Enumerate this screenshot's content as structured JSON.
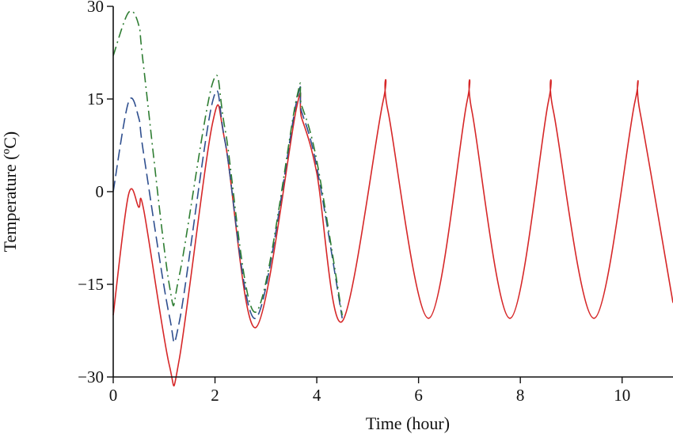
{
  "chart_data": {
    "type": "line",
    "title": "",
    "xlabel": "Time (hour)",
    "ylabel": "Temperature (ºC)",
    "xlim": [
      0,
      11
    ],
    "ylim": [
      -30,
      30
    ],
    "x_ticks": [
      0,
      2,
      4,
      6,
      8,
      10
    ],
    "y_ticks": [
      -30,
      -15,
      0,
      15,
      30
    ],
    "x_tick_labels": [
      "0",
      "2",
      "4",
      "6",
      "8",
      "10"
    ],
    "y_tick_labels": [
      "−30",
      "−15",
      "0",
      "15",
      "30"
    ],
    "grid": false,
    "legend": "none",
    "series": [
      {
        "color": "#d62728",
        "dash": "solid",
        "x": [
          0,
          0.3,
          0.5,
          0.6,
          1.1,
          1.3,
          1.95,
          2.2,
          2.8,
          3.6,
          3.7,
          4.0,
          4.5,
          5.3,
          5.4,
          6.2,
          6.95,
          7.05,
          7.8,
          8.55,
          8.65,
          9.45,
          10.25,
          10.35,
          11
        ],
        "y": [
          -20,
          -0.5,
          -2.5,
          -3,
          -28,
          -27,
          11,
          8,
          -22,
          13.5,
          12,
          3,
          -21,
          14.5,
          13,
          -20.5,
          14.5,
          13,
          -20.5,
          14.5,
          13,
          -20.5,
          14.5,
          13,
          -18
        ]
      },
      {
        "color": "#2f4f8f",
        "dash": "long-dash",
        "x": [
          0,
          0.3,
          0.5,
          0.6,
          1.1,
          1.3,
          1.95,
          2.2,
          2.8,
          3.6,
          3.7,
          4.0,
          4.5
        ],
        "y": [
          0,
          14.5,
          12,
          6,
          -20,
          -21,
          14.5,
          8,
          -20.5,
          14.5,
          13,
          4,
          -20.5
        ]
      },
      {
        "color": "#2e7d32",
        "dash": "dash-dot",
        "x": [
          0,
          0.3,
          0.5,
          0.6,
          1.1,
          1.3,
          1.95,
          2.2,
          2.8,
          3.6,
          3.7,
          4.0,
          4.5
        ],
        "y": [
          22,
          29,
          27,
          20,
          -15,
          -13.5,
          17.5,
          10,
          -19.5,
          15,
          14,
          5,
          -20
        ]
      }
    ]
  }
}
